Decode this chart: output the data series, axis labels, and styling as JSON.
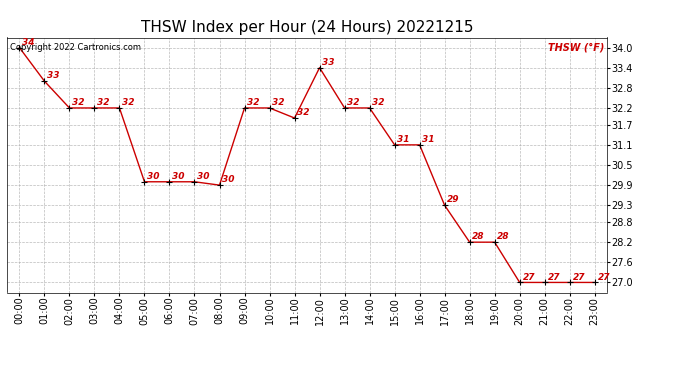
{
  "title": "THSW Index per Hour (24 Hours) 20221215",
  "copyright": "Copyright 2022 Cartronics.com",
  "legend_label": "THSW (°F)",
  "hours": [
    0,
    1,
    2,
    3,
    4,
    5,
    6,
    7,
    8,
    9,
    10,
    11,
    12,
    13,
    14,
    15,
    16,
    17,
    18,
    19,
    20,
    21,
    22,
    23
  ],
  "values": [
    34.0,
    33.0,
    32.2,
    32.2,
    32.2,
    30.0,
    30.0,
    30.0,
    29.9,
    32.2,
    32.2,
    31.9,
    33.4,
    32.2,
    32.2,
    31.1,
    31.1,
    29.3,
    28.2,
    28.2,
    27.0,
    27.0,
    27.0,
    27.0
  ],
  "line_color": "#cc0000",
  "marker_color": "#000000",
  "label_color": "#cc0000",
  "bg_color": "#ffffff",
  "grid_color": "#aaaaaa",
  "title_color": "#000000",
  "yticks": [
    27.0,
    27.6,
    28.2,
    28.8,
    29.3,
    29.9,
    30.5,
    31.1,
    31.7,
    32.2,
    32.8,
    33.4,
    34.0
  ],
  "ylim": [
    26.7,
    34.3
  ],
  "xlim": [
    -0.5,
    23.5
  ],
  "xlabel_hours": [
    "00:00",
    "01:00",
    "02:00",
    "03:00",
    "04:00",
    "05:00",
    "06:00",
    "07:00",
    "08:00",
    "09:00",
    "10:00",
    "11:00",
    "12:00",
    "13:00",
    "14:00",
    "15:00",
    "16:00",
    "17:00",
    "18:00",
    "19:00",
    "20:00",
    "21:00",
    "22:00",
    "23:00"
  ],
  "title_fontsize": 11,
  "axis_fontsize": 7,
  "label_fontsize": 6.5,
  "copyright_fontsize": 6,
  "legend_fontsize": 7
}
